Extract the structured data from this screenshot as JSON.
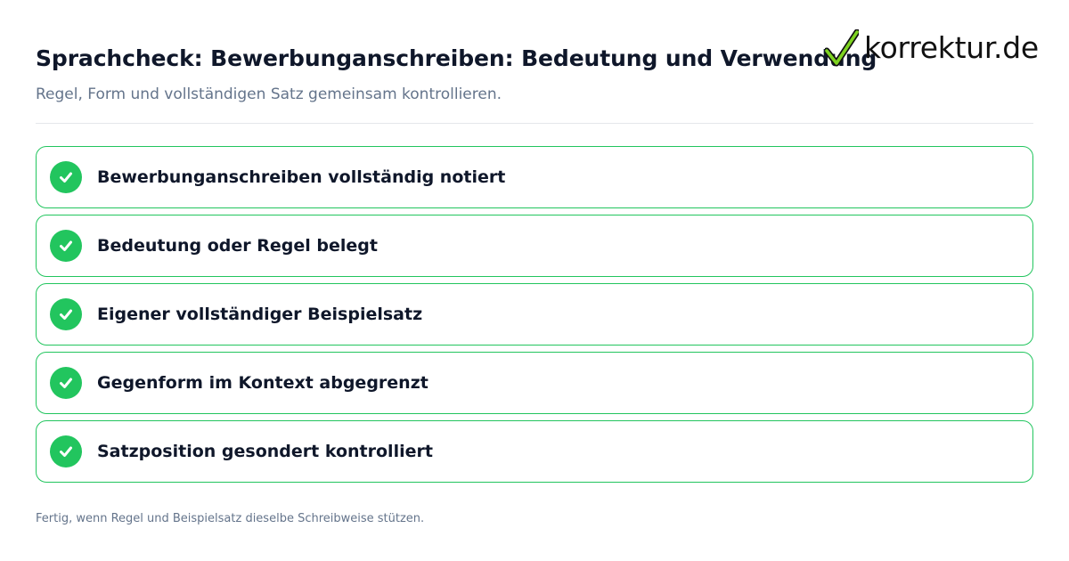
{
  "header": {
    "title": "Sprachcheck: Bewerbunganschreiben: Bedeutung und Verwendung",
    "subtitle": "Regel, Form und vollständigen Satz gemeinsam kontrollieren."
  },
  "logo": {
    "text": "korrektur.de",
    "icon": "checkmark-icon",
    "check_color": "#7ed321"
  },
  "checklist": {
    "items": [
      {
        "label": "Bewerbunganschreiben vollständig notiert",
        "checked": true
      },
      {
        "label": "Bedeutung oder Regel belegt",
        "checked": true
      },
      {
        "label": "Eigener vollständiger Beispielsatz",
        "checked": true
      },
      {
        "label": "Gegenform im Kontext abgegrenzt",
        "checked": true
      },
      {
        "label": "Satzposition gesondert kontrolliert",
        "checked": true
      }
    ],
    "accent_color": "#22c55e"
  },
  "footer": {
    "note": "Fertig, wenn Regel und Beispielsatz dieselbe Schreibweise stützen."
  }
}
